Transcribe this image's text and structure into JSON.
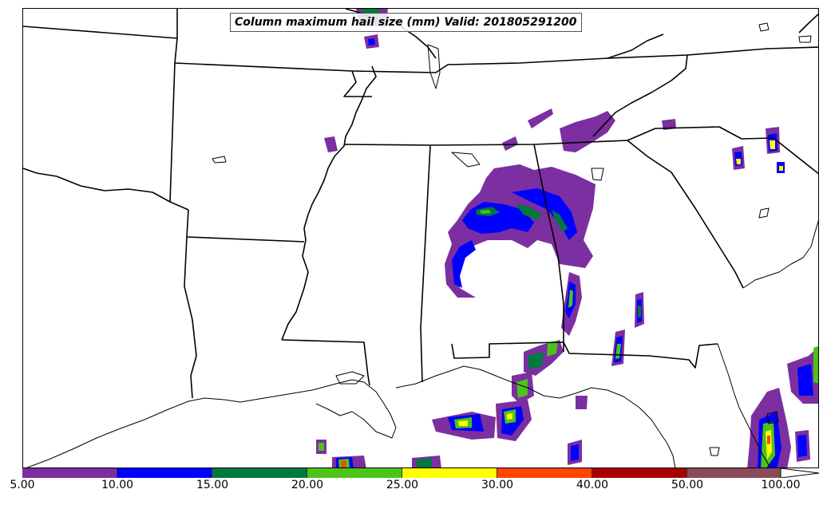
{
  "title": "Column maximum hail size (mm) Valid: 201805291200",
  "colorbar": {
    "ticks": [
      "5.00",
      "10.00",
      "15.00",
      "20.00",
      "25.00",
      "30.00",
      "40.00",
      "50.00",
      "100.00"
    ],
    "colors": [
      "#7b2fa0",
      "#0000ff",
      "#007a3d",
      "#4cc417",
      "#ffff00",
      "#ff4500",
      "#a80000",
      "#8b4a5a"
    ],
    "extend": "max"
  },
  "colors": {
    "level_5": "#7b2fa0",
    "level_10": "#0000ff",
    "level_15": "#007a3d",
    "level_20": "#4cc417",
    "level_25": "#ffff00",
    "level_30": "#ff4500",
    "level_40": "#a80000",
    "boundary": "#000000"
  }
}
